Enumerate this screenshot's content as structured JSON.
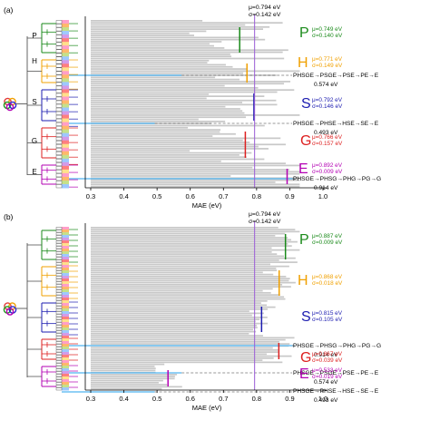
{
  "chart_data": [
    {
      "type": "bar",
      "orientation": "horizontal",
      "panel_label": "(a)",
      "xlabel": "MAE (eV)",
      "xlim": [
        0.3,
        1.0
      ],
      "xticks": [
        "0.3",
        "0.4",
        "0.5",
        "0.6",
        "0.7",
        "0.8",
        "0.9",
        "1.0"
      ],
      "overall": {
        "mu_text": "μ=0.794 eV",
        "sigma_text": "σ=0.142 eV",
        "mean": 0.794
      },
      "groups": [
        {
          "letter": "P",
          "color": "#1a8a1a",
          "mu_text": "μ=0.749 eV",
          "sigma_text": "σ=0.140 eV",
          "mean": 0.749
        },
        {
          "letter": "H",
          "color": "#f0a000",
          "mu_text": "μ=0.771 eV",
          "sigma_text": "σ=0.149 eV",
          "mean": 0.771
        },
        {
          "letter": "S",
          "color": "#1c1cb0",
          "mu_text": "μ=0.792 eV",
          "sigma_text": "σ=0.146 eV",
          "mean": 0.792
        },
        {
          "letter": "G",
          "color": "#dd1f1f",
          "mu_text": "μ=0.766 eV",
          "sigma_text": "σ=0.157 eV",
          "mean": 0.766
        },
        {
          "letter": "E",
          "color": "#b300b3",
          "mu_text": "μ=0.892 eV",
          "sigma_text": "σ=0.009 eV",
          "mean": 0.892
        }
      ],
      "highlights": [
        {
          "path": "PHSGE→PSGE→PSE→PE→E",
          "mae_text": "0.574 eV",
          "value": 0.574
        },
        {
          "path": "PHSGE→PHSE→HSE→SE→E",
          "mae_text": "0.493 eV",
          "value": 0.493
        },
        {
          "path": "PHSGE→PHSG→PHG→PG→G",
          "mae_text": "0.914 eV",
          "value": 0.914
        }
      ]
    },
    {
      "type": "bar",
      "orientation": "horizontal",
      "panel_label": "(b)",
      "xlabel": "MAE (eV)",
      "xlim": [
        0.3,
        1.0
      ],
      "xticks": [
        "0.3",
        "0.4",
        "0.5",
        "0.6",
        "0.7",
        "0.8",
        "0.9",
        "1.0"
      ],
      "overall": {
        "mu_text": "μ=0.794 eV",
        "sigma_text": "σ=0.142 eV",
        "mean": 0.794
      },
      "groups": [
        {
          "letter": "P",
          "color": "#1a8a1a",
          "mu_text": "μ=0.887 eV",
          "sigma_text": "σ=0.009 eV",
          "mean": 0.887
        },
        {
          "letter": "H",
          "color": "#f0a000",
          "mu_text": "μ=0.868 eV",
          "sigma_text": "σ=0.018 eV",
          "mean": 0.868
        },
        {
          "letter": "S",
          "color": "#1c1cb0",
          "mu_text": "μ=0.815 eV",
          "sigma_text": "σ=0.105 eV",
          "mean": 0.815
        },
        {
          "letter": "G",
          "color": "#dd1f1f",
          "mu_text": "μ=0.867 eV",
          "sigma_text": "σ=0.039 eV",
          "mean": 0.867
        },
        {
          "letter": "E",
          "color": "#b300b3",
          "mu_text": "μ=0.533 eV",
          "sigma_text": "σ=0.019 eV",
          "mean": 0.533
        }
      ],
      "highlights": [
        {
          "path": "PHSGE→PHSG→PHG→PG→G",
          "mae_text": "0.914 eV",
          "value": 0.914
        },
        {
          "path": "PHSGE→PSGE→PSE→PE→E",
          "mae_text": "0.574 eV",
          "value": 0.574
        },
        {
          "path": "PHSGE→PHSE→HSE→SE→E",
          "mae_text": "0.493 eV",
          "value": 0.493
        }
      ]
    }
  ],
  "colors": {
    "bar": "#c8c8c8",
    "highlight_line": "#4fb3f0",
    "overall_mean_line": "#9a5cd6",
    "tree_line": "#555555",
    "icon_colors": [
      "#e23b3b",
      "#f0a000",
      "#1f9a1f",
      "#2a2ad0",
      "#b300b3"
    ]
  }
}
